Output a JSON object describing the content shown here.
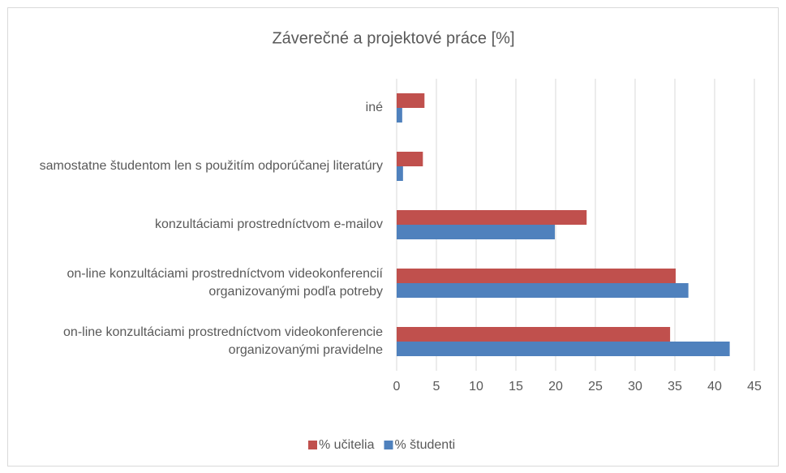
{
  "chart_data": {
    "type": "bar",
    "orientation": "horizontal",
    "title": "Záverečné a projektové práce [%]",
    "categories": [
      "iné",
      "samostatne študentom len s použitím odporúčanej literatúry",
      "konzultáciami prostredníctvom e-mailov",
      "on-line konzultáciami prostredníctvom videokonferencií organizovanými podľa potreby",
      "on-line konzultáciami prostredníctvom videokonferencie organizovanými pravidelne"
    ],
    "series": [
      {
        "name": "% učitelia",
        "color": "#c0504d",
        "values": [
          3.5,
          3.3,
          23.9,
          35.1,
          34.4
        ]
      },
      {
        "name": "% študenti",
        "color": "#4f81bd",
        "values": [
          0.7,
          0.8,
          19.9,
          36.7,
          41.9
        ]
      }
    ],
    "xlim": [
      0,
      45
    ],
    "xticks": [
      0,
      5,
      10,
      15,
      20,
      25,
      30,
      35,
      40,
      45
    ],
    "grid": true,
    "legend": "bottom"
  }
}
